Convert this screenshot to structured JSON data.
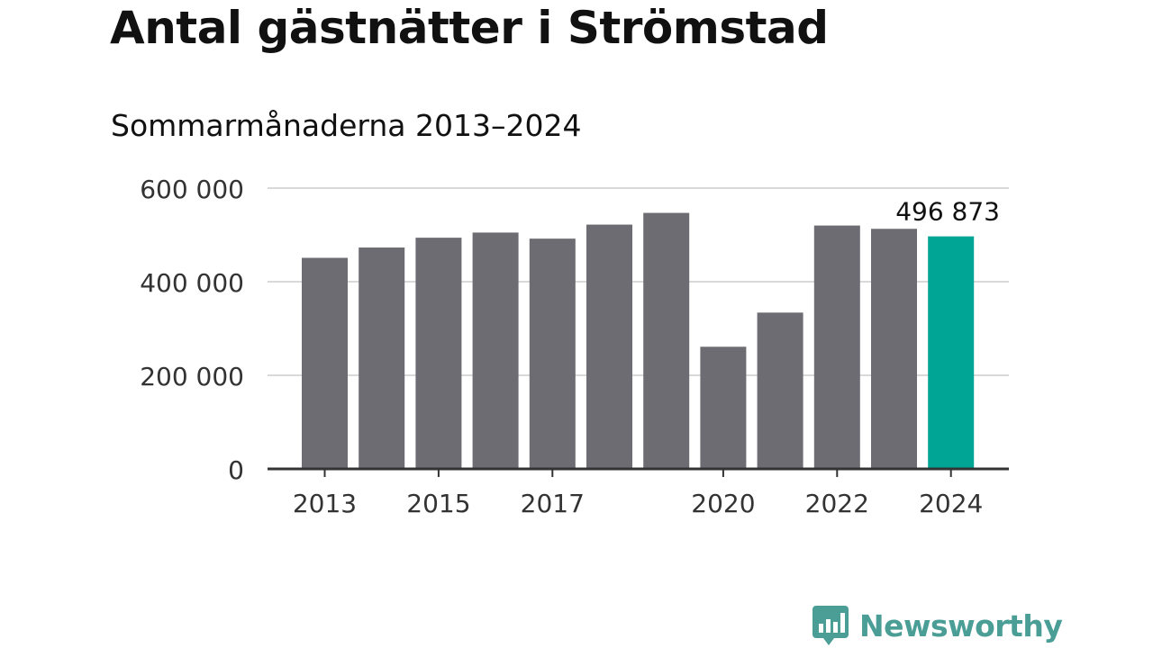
{
  "header": {
    "title": "Antal gästnätter i Strömstad",
    "subtitle": "Sommarmånaderna 2013–2024"
  },
  "brand": {
    "name": "Newsworthy",
    "icon": "bar-chart-speech-bubble-icon",
    "color": "#4a9e96"
  },
  "colors": {
    "bar": "#6d6c73",
    "highlight": "#00a596",
    "grid": "#d9d9d9",
    "axis": "#333333",
    "text": "#333333"
  },
  "chart_data": {
    "type": "bar",
    "title": "Antal gästnätter i Strömstad",
    "subtitle": "Sommarmånaderna 2013–2024",
    "categories": [
      "2013",
      "2014",
      "2015",
      "2016",
      "2017",
      "2018",
      "2019",
      "2020",
      "2021",
      "2022",
      "2023",
      "2024"
    ],
    "values": [
      451000,
      473000,
      494000,
      505000,
      492000,
      522000,
      547000,
      261000,
      334000,
      520000,
      513000,
      496873
    ],
    "highlight_index": 11,
    "x_tick_labels": [
      "2013",
      "2015",
      "2017",
      "2020",
      "2022",
      "2024"
    ],
    "y_ticks": [
      0,
      200000,
      400000,
      600000
    ],
    "y_tick_labels": [
      "0",
      "200 000",
      "400 000",
      "600 000"
    ],
    "ylim": [
      0,
      600000
    ],
    "annotation": "496 873",
    "grid": true
  }
}
